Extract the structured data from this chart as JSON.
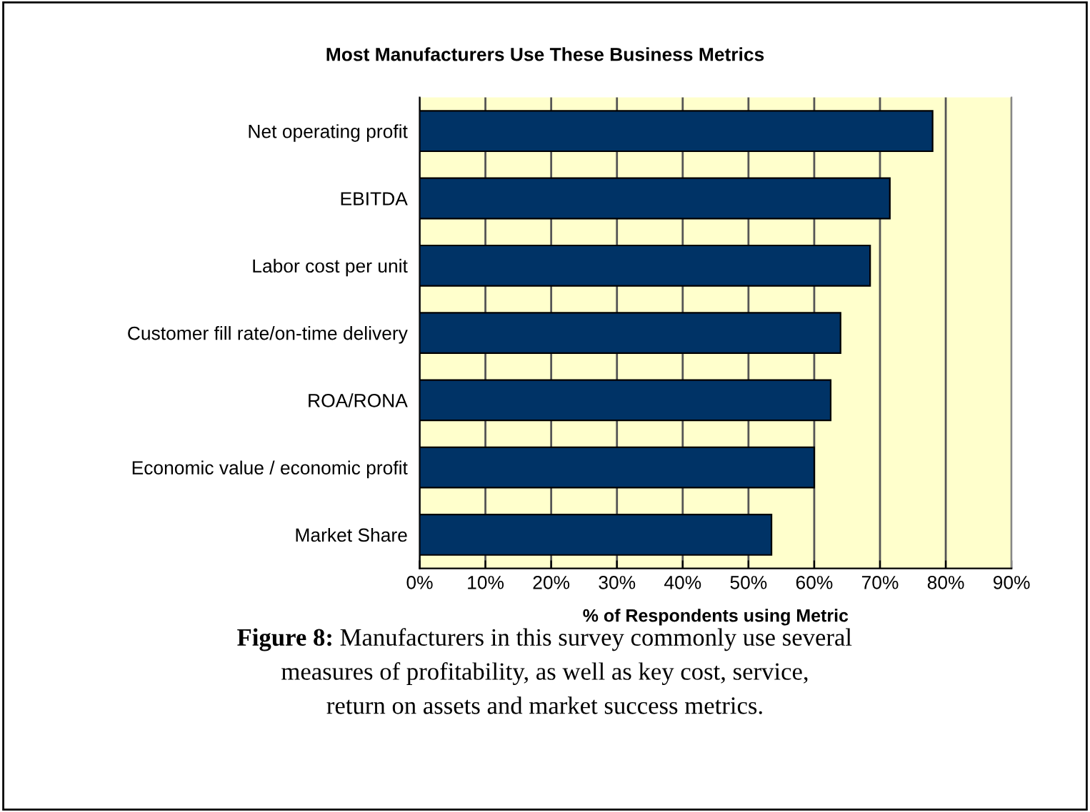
{
  "chart_data": {
    "type": "bar",
    "orientation": "horizontal",
    "title": "Most Manufacturers Use These Business Metrics",
    "xlabel": "% of Respondents using Metric",
    "categories": [
      "Net operating profit",
      "EBITDA",
      "Labor cost per unit",
      "Customer fill rate/on-time delivery",
      "ROA/RONA",
      "Economic value / economic profit",
      "Market Share"
    ],
    "values": [
      78,
      71.5,
      68.5,
      64,
      62.5,
      60,
      53.5
    ],
    "color": "#003366",
    "xlim": [
      0,
      90
    ],
    "xticks": [
      {
        "value": 0,
        "label": "0%"
      },
      {
        "value": 10,
        "label": "10%"
      },
      {
        "value": 20,
        "label": "20%"
      },
      {
        "value": 30,
        "label": "30%"
      },
      {
        "value": 40,
        "label": "40%"
      },
      {
        "value": 50,
        "label": "50%"
      },
      {
        "value": 60,
        "label": "60%"
      },
      {
        "value": 70,
        "label": "70%"
      },
      {
        "value": 80,
        "label": "80%"
      },
      {
        "value": 90,
        "label": "90%"
      }
    ],
    "grid": "x",
    "legend": false,
    "annotations": [
      "Figure 8:",
      "Manufacturers in this survey commonly use several\nmeasures of profitability, as well as key cost, service,\nreturn on assets and market success metrics."
    ]
  }
}
